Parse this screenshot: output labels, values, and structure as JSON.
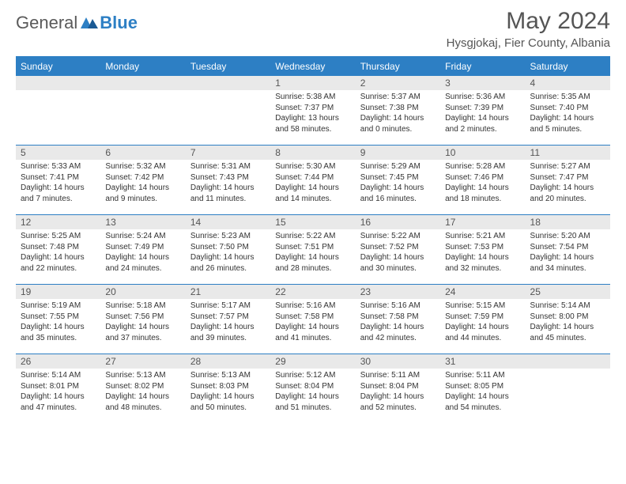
{
  "logo": {
    "general": "General",
    "blue": "Blue"
  },
  "title": "May 2024",
  "location": "Hysgjokaj, Fier County, Albania",
  "colors": {
    "accent": "#2d7fc4",
    "daynum_bg": "#e9e9e9",
    "text": "#333333",
    "title_text": "#555555"
  },
  "daysOfWeek": [
    "Sunday",
    "Monday",
    "Tuesday",
    "Wednesday",
    "Thursday",
    "Friday",
    "Saturday"
  ],
  "weeks": [
    [
      null,
      null,
      null,
      {
        "n": "1",
        "sr": "5:38 AM",
        "ss": "7:37 PM",
        "dl": "13 hours and 58 minutes."
      },
      {
        "n": "2",
        "sr": "5:37 AM",
        "ss": "7:38 PM",
        "dl": "14 hours and 0 minutes."
      },
      {
        "n": "3",
        "sr": "5:36 AM",
        "ss": "7:39 PM",
        "dl": "14 hours and 2 minutes."
      },
      {
        "n": "4",
        "sr": "5:35 AM",
        "ss": "7:40 PM",
        "dl": "14 hours and 5 minutes."
      }
    ],
    [
      {
        "n": "5",
        "sr": "5:33 AM",
        "ss": "7:41 PM",
        "dl": "14 hours and 7 minutes."
      },
      {
        "n": "6",
        "sr": "5:32 AM",
        "ss": "7:42 PM",
        "dl": "14 hours and 9 minutes."
      },
      {
        "n": "7",
        "sr": "5:31 AM",
        "ss": "7:43 PM",
        "dl": "14 hours and 11 minutes."
      },
      {
        "n": "8",
        "sr": "5:30 AM",
        "ss": "7:44 PM",
        "dl": "14 hours and 14 minutes."
      },
      {
        "n": "9",
        "sr": "5:29 AM",
        "ss": "7:45 PM",
        "dl": "14 hours and 16 minutes."
      },
      {
        "n": "10",
        "sr": "5:28 AM",
        "ss": "7:46 PM",
        "dl": "14 hours and 18 minutes."
      },
      {
        "n": "11",
        "sr": "5:27 AM",
        "ss": "7:47 PM",
        "dl": "14 hours and 20 minutes."
      }
    ],
    [
      {
        "n": "12",
        "sr": "5:25 AM",
        "ss": "7:48 PM",
        "dl": "14 hours and 22 minutes."
      },
      {
        "n": "13",
        "sr": "5:24 AM",
        "ss": "7:49 PM",
        "dl": "14 hours and 24 minutes."
      },
      {
        "n": "14",
        "sr": "5:23 AM",
        "ss": "7:50 PM",
        "dl": "14 hours and 26 minutes."
      },
      {
        "n": "15",
        "sr": "5:22 AM",
        "ss": "7:51 PM",
        "dl": "14 hours and 28 minutes."
      },
      {
        "n": "16",
        "sr": "5:22 AM",
        "ss": "7:52 PM",
        "dl": "14 hours and 30 minutes."
      },
      {
        "n": "17",
        "sr": "5:21 AM",
        "ss": "7:53 PM",
        "dl": "14 hours and 32 minutes."
      },
      {
        "n": "18",
        "sr": "5:20 AM",
        "ss": "7:54 PM",
        "dl": "14 hours and 34 minutes."
      }
    ],
    [
      {
        "n": "19",
        "sr": "5:19 AM",
        "ss": "7:55 PM",
        "dl": "14 hours and 35 minutes."
      },
      {
        "n": "20",
        "sr": "5:18 AM",
        "ss": "7:56 PM",
        "dl": "14 hours and 37 minutes."
      },
      {
        "n": "21",
        "sr": "5:17 AM",
        "ss": "7:57 PM",
        "dl": "14 hours and 39 minutes."
      },
      {
        "n": "22",
        "sr": "5:16 AM",
        "ss": "7:58 PM",
        "dl": "14 hours and 41 minutes."
      },
      {
        "n": "23",
        "sr": "5:16 AM",
        "ss": "7:58 PM",
        "dl": "14 hours and 42 minutes."
      },
      {
        "n": "24",
        "sr": "5:15 AM",
        "ss": "7:59 PM",
        "dl": "14 hours and 44 minutes."
      },
      {
        "n": "25",
        "sr": "5:14 AM",
        "ss": "8:00 PM",
        "dl": "14 hours and 45 minutes."
      }
    ],
    [
      {
        "n": "26",
        "sr": "5:14 AM",
        "ss": "8:01 PM",
        "dl": "14 hours and 47 minutes."
      },
      {
        "n": "27",
        "sr": "5:13 AM",
        "ss": "8:02 PM",
        "dl": "14 hours and 48 minutes."
      },
      {
        "n": "28",
        "sr": "5:13 AM",
        "ss": "8:03 PM",
        "dl": "14 hours and 50 minutes."
      },
      {
        "n": "29",
        "sr": "5:12 AM",
        "ss": "8:04 PM",
        "dl": "14 hours and 51 minutes."
      },
      {
        "n": "30",
        "sr": "5:11 AM",
        "ss": "8:04 PM",
        "dl": "14 hours and 52 minutes."
      },
      {
        "n": "31",
        "sr": "5:11 AM",
        "ss": "8:05 PM",
        "dl": "14 hours and 54 minutes."
      },
      null
    ]
  ],
  "labels": {
    "sunrise": "Sunrise: ",
    "sunset": "Sunset: ",
    "daylight": "Daylight: "
  }
}
